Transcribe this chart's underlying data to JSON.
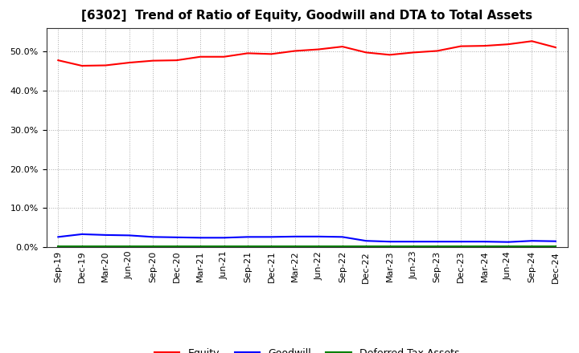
{
  "title": "[6302]  Trend of Ratio of Equity, Goodwill and DTA to Total Assets",
  "x_labels": [
    "Sep-19",
    "Dec-19",
    "Mar-20",
    "Jun-20",
    "Sep-20",
    "Dec-20",
    "Mar-21",
    "Jun-21",
    "Sep-21",
    "Dec-21",
    "Mar-22",
    "Jun-22",
    "Sep-22",
    "Dec-22",
    "Mar-23",
    "Jun-23",
    "Sep-23",
    "Dec-23",
    "Mar-24",
    "Jun-24",
    "Sep-24",
    "Dec-24"
  ],
  "equity": [
    0.478,
    0.464,
    0.465,
    0.472,
    0.477,
    0.478,
    0.487,
    0.487,
    0.496,
    0.494,
    0.502,
    0.506,
    0.513,
    0.498,
    0.492,
    0.498,
    0.502,
    0.514,
    0.515,
    0.519,
    0.527,
    0.511
  ],
  "goodwill": [
    0.026,
    0.033,
    0.031,
    0.03,
    0.026,
    0.025,
    0.024,
    0.024,
    0.026,
    0.026,
    0.027,
    0.027,
    0.026,
    0.016,
    0.014,
    0.014,
    0.014,
    0.014,
    0.014,
    0.013,
    0.016,
    0.015
  ],
  "dta": [
    0.003,
    0.003,
    0.003,
    0.003,
    0.003,
    0.003,
    0.003,
    0.003,
    0.003,
    0.003,
    0.003,
    0.003,
    0.003,
    0.003,
    0.003,
    0.003,
    0.003,
    0.003,
    0.003,
    0.003,
    0.003,
    0.003
  ],
  "equity_color": "#ff0000",
  "goodwill_color": "#0000ff",
  "dta_color": "#008000",
  "background_color": "#ffffff",
  "grid_color": "#aaaaaa",
  "ylim": [
    0.0,
    0.56
  ],
  "yticks": [
    0.0,
    0.1,
    0.2,
    0.3,
    0.4,
    0.5
  ],
  "legend_labels": [
    "Equity",
    "Goodwill",
    "Deferred Tax Assets"
  ],
  "title_fontsize": 11,
  "tick_fontsize": 8,
  "legend_fontsize": 9,
  "line_width": 1.5
}
